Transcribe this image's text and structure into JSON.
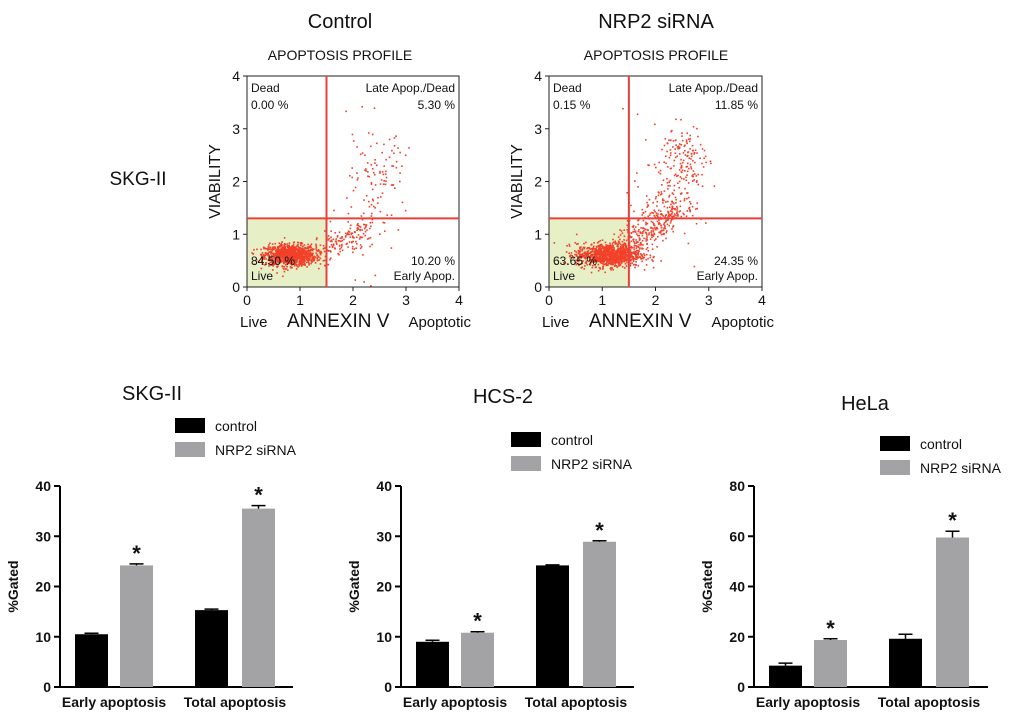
{
  "figure": {
    "row_label": "SKG-II",
    "axis_start_label": "Live",
    "axis_end_label": "Apoptotic"
  },
  "colors": {
    "dot": "#f2402a",
    "quad_line": "#e8413a",
    "live_fill": "#e6efc6",
    "control_bar": "#000000",
    "sirna_bar": "#a3a3a6"
  },
  "chart_data": [
    {
      "type": "scatter",
      "title": "Control",
      "subtitle": "APOPTOSIS PROFILE",
      "xlabel": "ANNEXIN V",
      "ylabel": "VIABILITY",
      "xlim": [
        0,
        4
      ],
      "ylim": [
        0,
        4
      ],
      "x_ticks": [
        "0",
        "1",
        "2",
        "3",
        "4"
      ],
      "y_ticks": [
        "0",
        "1",
        "2",
        "3",
        "4"
      ],
      "gate": {
        "x": 1.5,
        "y": 1.3
      },
      "quadrants": {
        "dead": {
          "label": "Dead",
          "value": "0.00 %"
        },
        "late": {
          "label": "Late Apop./Dead",
          "value": "5.30 %"
        },
        "live": {
          "label": "Live",
          "value": "84.50 %"
        },
        "early": {
          "label": "Early Apop.",
          "value": "10.20 %"
        }
      }
    },
    {
      "type": "scatter",
      "title": "NRP2 siRNA",
      "subtitle": "APOPTOSIS PROFILE",
      "xlabel": "ANNEXIN V",
      "ylabel": "VIABILITY",
      "xlim": [
        0,
        4
      ],
      "ylim": [
        0,
        4
      ],
      "x_ticks": [
        "0",
        "1",
        "2",
        "3",
        "4"
      ],
      "y_ticks": [
        "0",
        "1",
        "2",
        "3",
        "4"
      ],
      "gate": {
        "x": 1.5,
        "y": 1.3
      },
      "quadrants": {
        "dead": {
          "label": "Dead",
          "value": "0.15 %"
        },
        "late": {
          "label": "Late Apop./Dead",
          "value": "11.85 %"
        },
        "live": {
          "label": "Live",
          "value": "63.65 %"
        },
        "early": {
          "label": "Early Apop.",
          "value": "24.35 %"
        }
      }
    },
    {
      "type": "bar",
      "title": "SKG-II",
      "ylabel": "%Gated",
      "categories": [
        "Early apoptosis",
        "Total apoptosis"
      ],
      "series": [
        {
          "name": "control",
          "values": [
            10.5,
            15.3
          ],
          "errors": [
            0.2,
            0.2
          ]
        },
        {
          "name": "NRP2 siRNA",
          "values": [
            24.2,
            35.5
          ],
          "errors": [
            0.3,
            0.6
          ]
        }
      ],
      "significance": [
        "*",
        "*"
      ],
      "ylim": [
        0,
        40
      ],
      "y_ticks": [
        0,
        10,
        20,
        30,
        40
      ]
    },
    {
      "type": "bar",
      "title": "HCS-2",
      "ylabel": "%Gated",
      "categories": [
        "Early apoptosis",
        "Total apoptosis"
      ],
      "series": [
        {
          "name": "control",
          "values": [
            9.0,
            24.2
          ],
          "errors": [
            0.3,
            0.1
          ]
        },
        {
          "name": "NRP2 siRNA",
          "values": [
            10.8,
            28.9
          ],
          "errors": [
            0.2,
            0.2
          ]
        }
      ],
      "significance": [
        "*",
        "*"
      ],
      "ylim": [
        0,
        40
      ],
      "y_ticks": [
        0,
        10,
        20,
        30,
        40
      ]
    },
    {
      "type": "bar",
      "title": "HeLa",
      "ylabel": "%Gated",
      "categories": [
        "Early apoptosis",
        "Total apoptosis"
      ],
      "series": [
        {
          "name": "control",
          "values": [
            8.5,
            19.2
          ],
          "errors": [
            1.0,
            1.8
          ]
        },
        {
          "name": "NRP2 siRNA",
          "values": [
            18.7,
            59.5
          ],
          "errors": [
            0.5,
            2.5
          ]
        }
      ],
      "significance": [
        "*",
        "*"
      ],
      "ylim": [
        0,
        80
      ],
      "y_ticks": [
        0,
        20,
        40,
        60,
        80
      ]
    }
  ]
}
